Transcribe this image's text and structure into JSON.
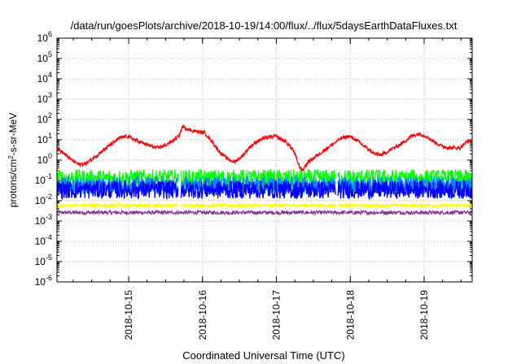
{
  "chart_data": {
    "type": "line",
    "title": "/data/run/goesPlots/archive/2018-10-19/14:00/flux/../flux/5daysEarthDataFluxes.txt",
    "xlabel": "Coordinated Universal Time (UTC)",
    "ylabel": {
      "prefix": "protons/cm",
      "sup": "2",
      "suffix": "-s-sr-MeV"
    },
    "y_scale": "log",
    "ylim_exponents": [
      -6,
      6
    ],
    "y_ticks": [
      {
        "base": "10",
        "exp": "-6",
        "value": 1e-06
      },
      {
        "base": "10",
        "exp": "-5",
        "value": 1e-05
      },
      {
        "base": "10",
        "exp": "-4",
        "value": 0.0001
      },
      {
        "base": "10",
        "exp": "-3",
        "value": 0.001
      },
      {
        "base": "10",
        "exp": "-2",
        "value": 0.01
      },
      {
        "base": "10",
        "exp": "-1",
        "value": 0.1
      },
      {
        "base": "10",
        "exp": "0",
        "value": 1
      },
      {
        "base": "10",
        "exp": "1",
        "value": 10
      },
      {
        "base": "10",
        "exp": "2",
        "value": 100
      },
      {
        "base": "10",
        "exp": "3",
        "value": 1000
      },
      {
        "base": "10",
        "exp": "4",
        "value": 10000
      },
      {
        "base": "10",
        "exp": "5",
        "value": 100000
      },
      {
        "base": "10",
        "exp": "6",
        "value": 1000000
      }
    ],
    "x_range_days": [
      0,
      5.62
    ],
    "x_ticks": [
      {
        "label": "2018-10-15",
        "day": 0.97
      },
      {
        "label": "2018-10-16",
        "day": 1.97
      },
      {
        "label": "2018-10-17",
        "day": 2.97
      },
      {
        "label": "2018-10-18",
        "day": 3.97
      },
      {
        "label": "2018-10-19",
        "day": 4.97
      }
    ],
    "grid": true,
    "legend": "none",
    "series": [
      {
        "color": "#ff0000",
        "points": [
          [
            0.0,
            4.0
          ],
          [
            0.1,
            2.0
          ],
          [
            0.2,
            1.0
          ],
          [
            0.3,
            0.6
          ],
          [
            0.4,
            0.7
          ],
          [
            0.55,
            1.8
          ],
          [
            0.7,
            5.0
          ],
          [
            0.85,
            12
          ],
          [
            0.95,
            15
          ],
          [
            1.05,
            10
          ],
          [
            1.2,
            6
          ],
          [
            1.35,
            4
          ],
          [
            1.45,
            5
          ],
          [
            1.55,
            8
          ],
          [
            1.65,
            15
          ],
          [
            1.7,
            45
          ],
          [
            1.8,
            30
          ],
          [
            1.9,
            25
          ],
          [
            2.0,
            22
          ],
          [
            2.1,
            8
          ],
          [
            2.2,
            2.5
          ],
          [
            2.3,
            1.2
          ],
          [
            2.4,
            0.8
          ],
          [
            2.5,
            1.5
          ],
          [
            2.6,
            4
          ],
          [
            2.7,
            8
          ],
          [
            2.8,
            12
          ],
          [
            2.95,
            15
          ],
          [
            3.1,
            8
          ],
          [
            3.2,
            3
          ],
          [
            3.27,
            0.6
          ],
          [
            3.32,
            0.3
          ],
          [
            3.4,
            0.8
          ],
          [
            3.55,
            2
          ],
          [
            3.7,
            5
          ],
          [
            3.85,
            12
          ],
          [
            3.95,
            15
          ],
          [
            4.05,
            10
          ],
          [
            4.15,
            5
          ],
          [
            4.3,
            2
          ],
          [
            4.4,
            1.8
          ],
          [
            4.5,
            3
          ],
          [
            4.65,
            6
          ],
          [
            4.8,
            15
          ],
          [
            4.9,
            20
          ],
          [
            5.0,
            15
          ],
          [
            5.1,
            8
          ],
          [
            5.2,
            5
          ],
          [
            5.3,
            4
          ],
          [
            5.45,
            4
          ],
          [
            5.55,
            8
          ],
          [
            5.62,
            10
          ]
        ]
      },
      {
        "color": "#00ff00",
        "center": 0.13,
        "spread": 0.28,
        "gaps": [
          [
            1.64,
            1.68
          ],
          [
            3.77,
            3.8
          ]
        ]
      },
      {
        "color": "#00aaaa",
        "center": 0.045,
        "spread": 0.22,
        "gaps": [
          [
            1.64,
            1.68
          ],
          [
            3.77,
            3.8
          ]
        ]
      },
      {
        "color": "#0088ff",
        "center": 0.065,
        "spread": 0.25,
        "gaps": [
          [
            1.64,
            1.68
          ],
          [
            3.77,
            3.8
          ]
        ]
      },
      {
        "color": "#0000ff",
        "center": 0.035,
        "spread": 0.3,
        "gaps": [
          [
            1.64,
            1.68
          ],
          [
            3.77,
            3.8
          ]
        ]
      },
      {
        "color": "#ffff00",
        "center": 0.0058,
        "spread": 0.06,
        "gaps": [
          [
            1.64,
            1.68
          ],
          [
            3.77,
            3.8
          ]
        ]
      },
      {
        "color": "#883388",
        "center": 0.0026,
        "spread": 0.06,
        "gaps": []
      }
    ]
  }
}
